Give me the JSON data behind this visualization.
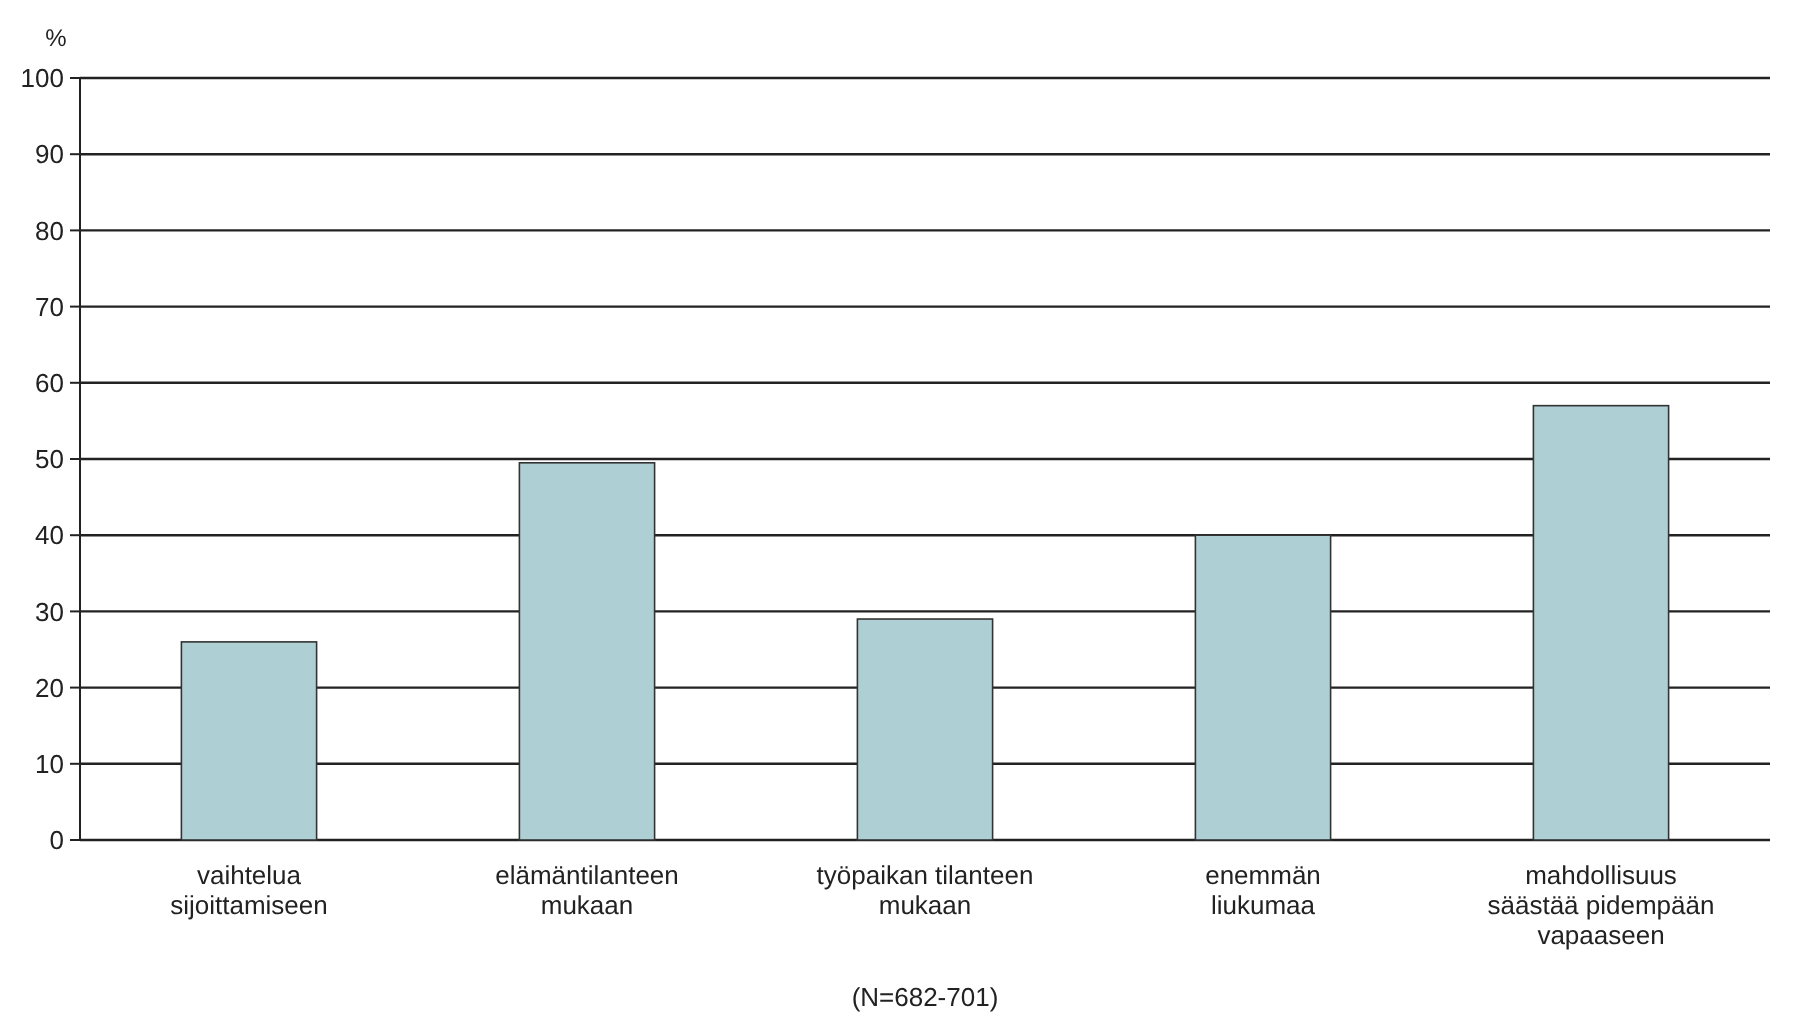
{
  "chart_data": {
    "type": "bar",
    "ylabel": "%",
    "categories": [
      "vaihtelua\nsijoittamiseen",
      "elämäntilanteen\nmukaan",
      "työpaikan tilanteen\nmukaan",
      "enemmän\nliukumaa",
      "mahdollisuus\nsäästää pidempään\nvapaaseen"
    ],
    "values": [
      26,
      49.5,
      29,
      40,
      57
    ],
    "color": "#aed0d4",
    "ylim": [
      0,
      100
    ],
    "yticks": [
      0,
      10,
      20,
      30,
      40,
      50,
      60,
      70,
      80,
      90,
      100
    ],
    "grid": "y",
    "annotations": [
      "(N=682-701)"
    ]
  }
}
